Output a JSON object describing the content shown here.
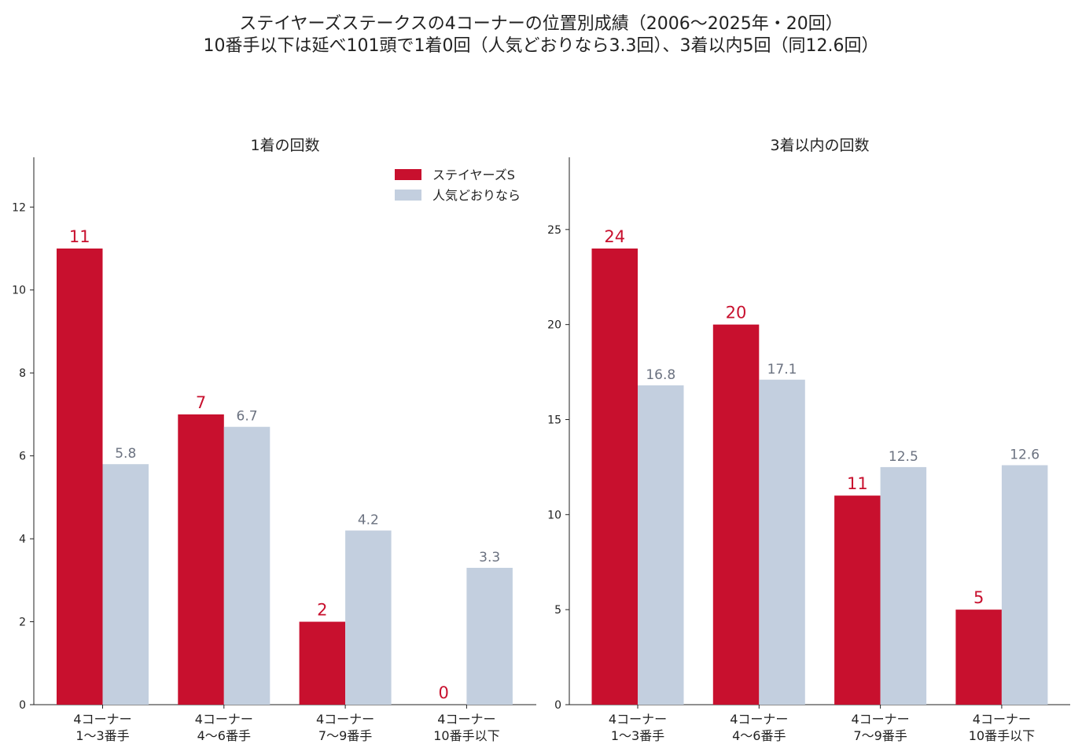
{
  "suptitle": {
    "line1": "ステイヤーズステークスの4コーナーの位置別成績（2006〜2025年・20回）",
    "line2": "10番手以下は延べ101頭で1着0回（人気どおりなら3.3回）、3着以内5回（同12.6回）"
  },
  "colors": {
    "actual": "#c8102e",
    "expected": "#c3cfdf",
    "actual_label": "#c8102e",
    "expected_label": "#6b7280",
    "axis": "#222222"
  },
  "chart_data": [
    {
      "type": "bar",
      "title": "1着の回数",
      "categories": [
        [
          "4コーナー",
          "1〜3番手"
        ],
        [
          "4コーナー",
          "4〜6番手"
        ],
        [
          "4コーナー",
          "7〜9番手"
        ],
        [
          "4コーナー",
          "10番手以下"
        ]
      ],
      "series": [
        {
          "name": "ステイヤーズS",
          "values": [
            11,
            7,
            2,
            0
          ],
          "labels": [
            "11",
            "7",
            "2",
            "0"
          ]
        },
        {
          "name": "人気どおりなら",
          "values": [
            5.8,
            6.7,
            4.2,
            3.3
          ],
          "labels": [
            "5.8",
            "6.7",
            "4.2",
            "3.3"
          ]
        }
      ],
      "ylim": [
        0,
        13.2
      ],
      "yticks": [
        0,
        2,
        4,
        6,
        8,
        10,
        12
      ],
      "legend": "top-right",
      "grid": false
    },
    {
      "type": "bar",
      "title": "3着以内の回数",
      "categories": [
        [
          "4コーナー",
          "1〜3番手"
        ],
        [
          "4コーナー",
          "4〜6番手"
        ],
        [
          "4コーナー",
          "7〜9番手"
        ],
        [
          "4コーナー",
          "10番手以下"
        ]
      ],
      "series": [
        {
          "name": "ステイヤーズS",
          "values": [
            24,
            20,
            11,
            5
          ],
          "labels": [
            "24",
            "20",
            "11",
            "5"
          ]
        },
        {
          "name": "人気どおりなら",
          "values": [
            16.8,
            17.1,
            12.5,
            12.6
          ],
          "labels": [
            "16.8",
            "17.1",
            "12.5",
            "12.6"
          ]
        }
      ],
      "ylim": [
        0,
        28.8
      ],
      "yticks": [
        0,
        5,
        10,
        15,
        20,
        25
      ],
      "legend": "none",
      "grid": false
    }
  ]
}
